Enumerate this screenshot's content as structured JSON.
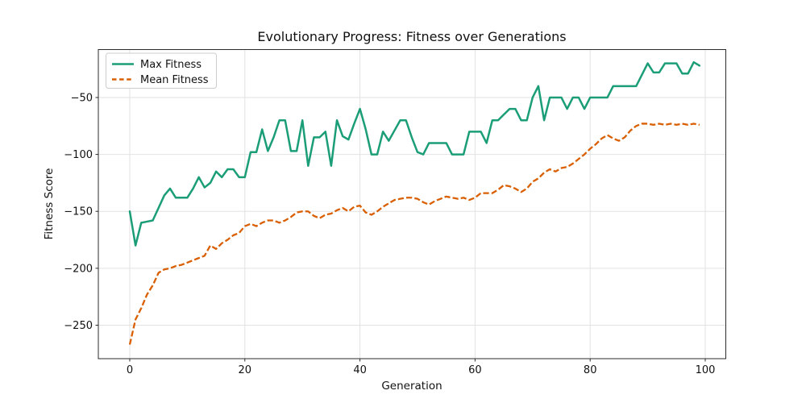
{
  "figure": {
    "title": "Evolutionary Progress: Fitness over Generations",
    "xlabel": "Generation",
    "ylabel": "Fitness Score",
    "background_color": "#ffffff"
  },
  "legend": {
    "items": [
      {
        "label": "Max Fitness",
        "color": "#1b9e77",
        "style": "solid"
      },
      {
        "label": "Mean Fitness",
        "color": "#d95f02",
        "style": "dashed"
      }
    ]
  },
  "chart_data": {
    "type": "line",
    "title": "Evolutionary Progress: Fitness over Generations",
    "xlabel": "Generation",
    "ylabel": "Fitness Score",
    "grid": true,
    "legend_position": "upper left",
    "xlim": [
      -5.46,
      103.57
    ],
    "ylim": [
      -279.4,
      -7.9
    ],
    "xticks": [
      0,
      20,
      40,
      60,
      80,
      100
    ],
    "xticklabels": [
      "0",
      "20",
      "40",
      "60",
      "80",
      "100"
    ],
    "yticks": [
      -50,
      -100,
      -150,
      -200,
      -250
    ],
    "yticklabels": [
      "−50",
      "−100",
      "−150",
      "−200",
      "−250"
    ],
    "x": [
      0,
      1,
      2,
      3,
      4,
      5,
      6,
      7,
      8,
      9,
      10,
      11,
      12,
      13,
      14,
      15,
      16,
      17,
      18,
      19,
      20,
      21,
      22,
      23,
      24,
      25,
      26,
      27,
      28,
      29,
      30,
      31,
      32,
      33,
      34,
      35,
      36,
      37,
      38,
      39,
      40,
      41,
      42,
      43,
      44,
      45,
      46,
      47,
      48,
      49,
      50,
      51,
      52,
      53,
      54,
      55,
      56,
      57,
      58,
      59,
      60,
      61,
      62,
      63,
      64,
      65,
      66,
      67,
      68,
      69,
      70,
      71,
      72,
      73,
      74,
      75,
      76,
      77,
      78,
      79,
      80,
      81,
      82,
      83,
      84,
      85,
      86,
      87,
      88,
      89,
      90,
      91,
      92,
      93,
      94,
      95,
      96,
      97,
      98,
      99
    ],
    "series": [
      {
        "name": "Max Fitness",
        "color": "#1b9e77",
        "style": "solid",
        "linewidth": 2.5,
        "values": [
          -150,
          -180,
          -160,
          -159,
          -158,
          -147,
          -136,
          -130,
          -138,
          -138,
          -138,
          -130,
          -120,
          -129,
          -125,
          -115,
          -120,
          -113,
          -113,
          -120,
          -120,
          -98,
          -98,
          -78,
          -97,
          -85,
          -70,
          -70,
          -97,
          -97,
          -70,
          -110,
          -85,
          -85,
          -80,
          -110,
          -70,
          -84,
          -87,
          -73,
          -60,
          -78,
          -100,
          -100,
          -80,
          -88,
          -79,
          -70,
          -70,
          -85,
          -98,
          -100,
          -90,
          -90,
          -90,
          -90,
          -100,
          -100,
          -100,
          -80,
          -80,
          -80,
          -90,
          -70,
          -70,
          -65,
          -60,
          -60,
          -70,
          -70,
          -50,
          -40,
          -70,
          -50,
          -50,
          -50,
          -60,
          -50,
          -50,
          -60,
          -50,
          -50,
          -50,
          -50,
          -40,
          -40,
          -40,
          -40,
          -40,
          -30,
          -20,
          -28,
          -28,
          -20,
          -20,
          -20,
          -29,
          -29,
          -19,
          -22
        ]
      },
      {
        "name": "Mean Fitness",
        "color": "#d95f02",
        "style": "dashed",
        "linewidth": 2.3,
        "values": [
          -267,
          -245,
          -235,
          -223,
          -215,
          -204,
          -201,
          -200,
          -198,
          -197,
          -195,
          -193,
          -191,
          -189,
          -180,
          -183,
          -178,
          -175,
          -171,
          -169,
          -163,
          -161,
          -163,
          -160,
          -158,
          -158,
          -160,
          -158,
          -155,
          -151,
          -150,
          -150,
          -154,
          -156,
          -153,
          -152,
          -149,
          -147,
          -150,
          -146,
          -145,
          -151,
          -153,
          -150,
          -146,
          -143,
          -140,
          -139,
          -138,
          -138,
          -139,
          -142,
          -144,
          -141,
          -139,
          -137,
          -138,
          -139,
          -138,
          -140,
          -138,
          -134,
          -134,
          -134,
          -131,
          -127,
          -128,
          -130,
          -133,
          -130,
          -124,
          -121,
          -116,
          -113,
          -115,
          -112,
          -111,
          -108,
          -104,
          -100,
          -95,
          -91,
          -86,
          -83,
          -86,
          -88,
          -85,
          -79,
          -75,
          -73,
          -73,
          -74,
          -73,
          -74,
          -73,
          -74,
          -73,
          -74,
          -73,
          -74
        ]
      }
    ]
  }
}
